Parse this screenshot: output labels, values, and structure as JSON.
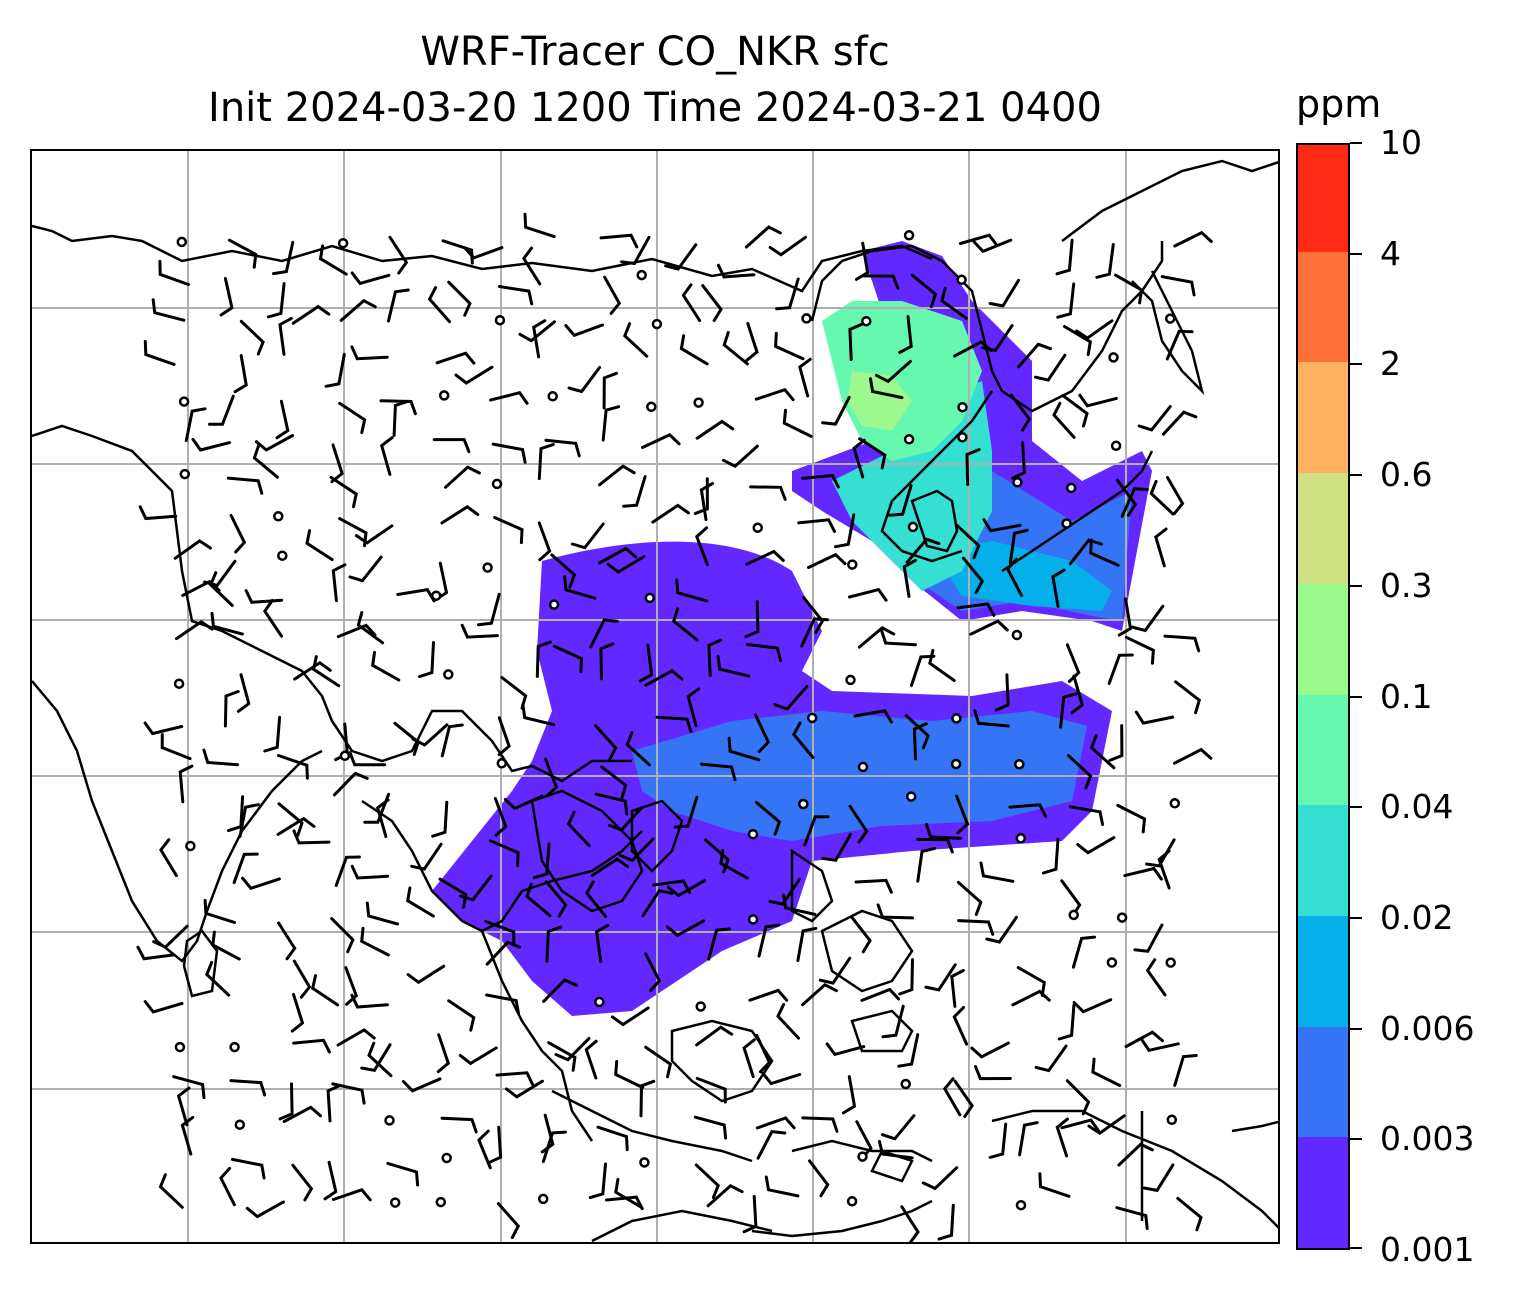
{
  "title": {
    "line1": "WRF-Tracer CO_NKR sfc",
    "line2": "Init 2024-03-20 1200 Time 2024-03-21 0400"
  },
  "colorbar": {
    "units": "ppm",
    "levels": [
      "0.001",
      "0.003",
      "0.006",
      "0.02",
      "0.04",
      "0.1",
      "0.3",
      "0.6",
      "2",
      "4",
      "10"
    ],
    "colors": [
      "#6228ff",
      "#3575f5",
      "#05b0ea",
      "#35dfd2",
      "#67f8b0",
      "#9cf98d",
      "#d0e184",
      "#ffb061",
      "#ff6f3a",
      "#ff2a16"
    ]
  },
  "map": {
    "type": "filled contour map with wind barbs",
    "field": "CO_NKR tracer concentration at surface",
    "gridlines": true,
    "grid_color": "#b0b0b0",
    "coastline_color": "#000000",
    "barb_color": "#000000",
    "background": "#ffffff"
  }
}
